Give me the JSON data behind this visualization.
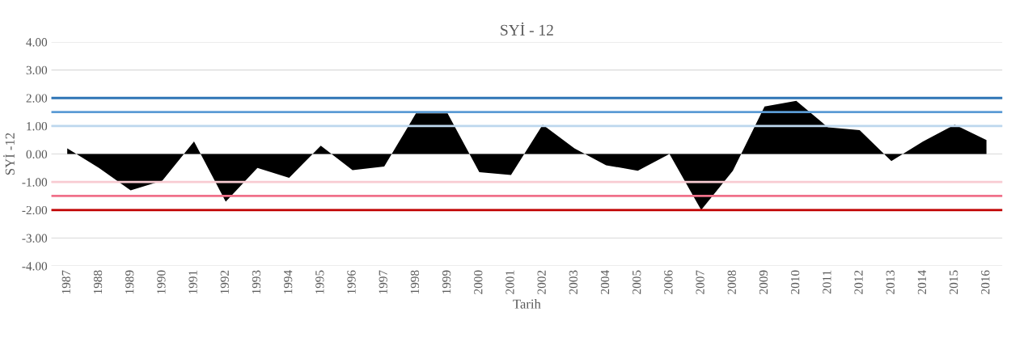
{
  "chart_data": {
    "type": "area",
    "title": "SYİ - 12",
    "xlabel": "Tarih",
    "ylabel": "SYİ -12",
    "categories": [
      "1987",
      "1988",
      "1989",
      "1990",
      "1991",
      "1992",
      "1993",
      "1994",
      "1995",
      "1996",
      "1997",
      "1998",
      "1999",
      "2000",
      "2001",
      "2002",
      "2003",
      "2004",
      "2005",
      "2006",
      "2007",
      "2008",
      "2009",
      "2010",
      "2011",
      "2012",
      "2013",
      "2014",
      "2015",
      "2016"
    ],
    "series": [
      {
        "color": "#000000",
        "values": [
          0.2,
          -0.5,
          -1.3,
          -0.95,
          0.45,
          -1.7,
          -0.5,
          -0.85,
          0.3,
          -0.58,
          -0.45,
          1.45,
          1.45,
          -0.65,
          -0.75,
          1.05,
          0.2,
          -0.4,
          -0.6,
          0.0,
          -2.0,
          -0.6,
          1.7,
          1.9,
          0.95,
          0.85,
          -0.25,
          0.45,
          1.05,
          0.5
        ]
      }
    ],
    "ylim": [
      -4,
      4
    ],
    "yticks": [
      {
        "value": -4,
        "label": "-4.00"
      },
      {
        "value": -3,
        "label": "-3.00"
      },
      {
        "value": -2,
        "label": "-2.00"
      },
      {
        "value": -1,
        "label": "-1.00"
      },
      {
        "value": 0,
        "label": "0.00"
      },
      {
        "value": 1,
        "label": "1.00"
      },
      {
        "value": 2,
        "label": "2.00"
      },
      {
        "value": 3,
        "label": "3.00"
      },
      {
        "value": 4,
        "label": "4.00"
      }
    ],
    "grid": "y",
    "ref_lines": [
      {
        "axis": "y",
        "value": 2,
        "color": "#2e75b6"
      },
      {
        "axis": "y",
        "value": 1.5,
        "color": "#5b9bd5"
      },
      {
        "axis": "y",
        "value": 1,
        "color": "#bdd7ee"
      },
      {
        "axis": "y",
        "value": -1,
        "color": "#f8cbd2"
      },
      {
        "axis": "y",
        "value": -1.5,
        "color": "#f0708a"
      },
      {
        "axis": "y",
        "value": -2,
        "color": "#c00000"
      }
    ]
  }
}
